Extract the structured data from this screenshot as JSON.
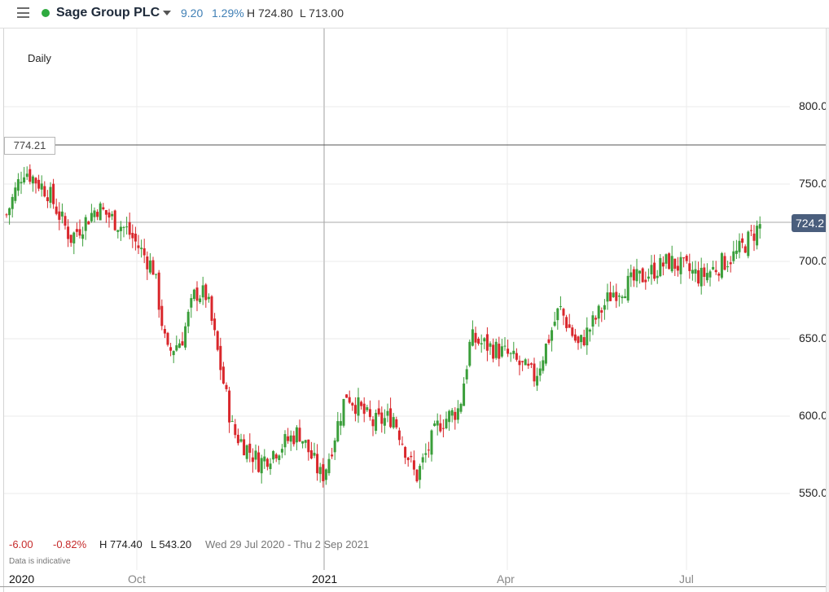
{
  "header": {
    "menu_icon": "hamburger-menu-icon",
    "status_color": "#2eaa3f",
    "instrument": "Sage Group PLC",
    "change": "9.20",
    "change_pct": "1.29%",
    "high": "H 724.80",
    "low": "L 713.00"
  },
  "chart": {
    "interval": "Daily",
    "crosshair_price": "774.21",
    "last_price": "724.2",
    "y_ticks": [
      "800.0",
      "750.0",
      "700.0",
      "650.0",
      "600.0",
      "550.0"
    ],
    "x_ticks": [
      "2020",
      "Oct",
      "2021",
      "Apr",
      "Jul"
    ]
  },
  "footer": {
    "change": "-6.00",
    "change_pct": "-0.82%",
    "high": "H 774.40",
    "low": "L 543.20",
    "range": "Wed 29 Jul 2020 - Thu 2 Sep 2021",
    "disclaimer": "Data is indicative"
  },
  "colors": {
    "up": "#3a9e3a",
    "down": "#d9262b",
    "last_price_bg": "#4a5e7d",
    "change_blue": "#3f7fb5",
    "change_red": "#c62b2b"
  },
  "chart_data": {
    "type": "candlestick",
    "title": "Sage Group PLC",
    "subtitle": "Daily",
    "xlabel": "",
    "ylabel": "",
    "ylim": [
      520,
      850
    ],
    "grid": true,
    "x_ticks": [
      "2020",
      "Oct",
      "2021",
      "Apr",
      "Jul"
    ],
    "y_ticks": [
      550,
      600,
      650,
      700,
      750,
      800
    ],
    "horizontal_lines": [
      774.21,
      724.2
    ],
    "period": "Wed 29 Jul 2020 - Thu 2 Sep 2021",
    "period_high": 774.4,
    "period_low": 543.2,
    "period_change": -6.0,
    "period_change_pct": -0.82,
    "last": 724.2,
    "approx_close_path": [
      {
        "date": "2020-07-29",
        "close": 730
      },
      {
        "date": "2020-08-07",
        "close": 760
      },
      {
        "date": "2020-08-20",
        "close": 745
      },
      {
        "date": "2020-09-01",
        "close": 715
      },
      {
        "date": "2020-09-15",
        "close": 735
      },
      {
        "date": "2020-10-01",
        "close": 720
      },
      {
        "date": "2020-10-15",
        "close": 695
      },
      {
        "date": "2020-10-22",
        "close": 640
      },
      {
        "date": "2020-10-30",
        "close": 650
      },
      {
        "date": "2020-11-06",
        "close": 680
      },
      {
        "date": "2020-11-12",
        "close": 678
      },
      {
        "date": "2020-11-26",
        "close": 590
      },
      {
        "date": "2020-12-10",
        "close": 570
      },
      {
        "date": "2020-12-31",
        "close": 590
      },
      {
        "date": "2021-01-12",
        "close": 560
      },
      {
        "date": "2021-01-15",
        "close": 570
      },
      {
        "date": "2021-01-25",
        "close": 615
      },
      {
        "date": "2021-02-08",
        "close": 595
      },
      {
        "date": "2021-02-19",
        "close": 600
      },
      {
        "date": "2021-03-03",
        "close": 560
      },
      {
        "date": "2021-03-15",
        "close": 595
      },
      {
        "date": "2021-03-26",
        "close": 605
      },
      {
        "date": "2021-04-01",
        "close": 650
      },
      {
        "date": "2021-04-20",
        "close": 640
      },
      {
        "date": "2021-05-05",
        "close": 625
      },
      {
        "date": "2021-05-18",
        "close": 670
      },
      {
        "date": "2021-05-28",
        "close": 645
      },
      {
        "date": "2021-06-15",
        "close": 680
      },
      {
        "date": "2021-07-01",
        "close": 690
      },
      {
        "date": "2021-07-15",
        "close": 700
      },
      {
        "date": "2021-08-01",
        "close": 690
      },
      {
        "date": "2021-08-20",
        "close": 705
      },
      {
        "date": "2021-09-02",
        "close": 724.2
      }
    ]
  }
}
